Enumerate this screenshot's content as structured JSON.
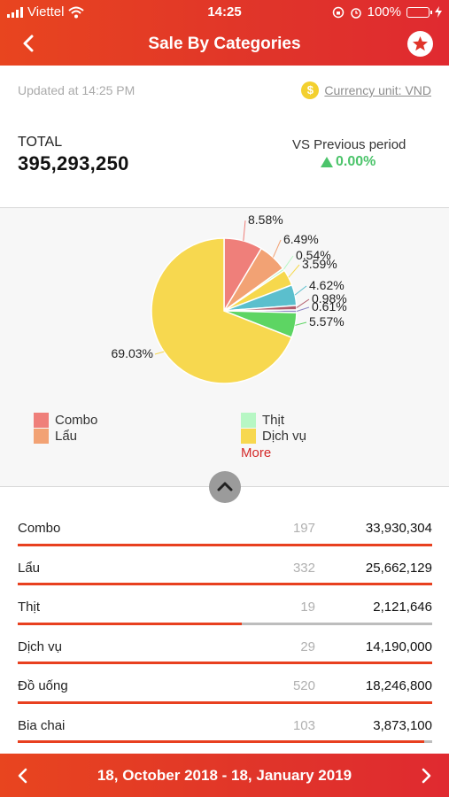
{
  "status_bar": {
    "carrier": "Viettel",
    "time": "14:25",
    "battery": "100%"
  },
  "header": {
    "title": "Sale By Categories"
  },
  "info": {
    "updated": "Updated at 14:25 PM",
    "currency_symbol": "$",
    "currency": "Currency unit: VND"
  },
  "summary": {
    "total_label": "TOTAL",
    "total_value": "395,293,250",
    "vs_label": "VS Previous period",
    "vs_value": "0.00%"
  },
  "chart_data": {
    "type": "pie",
    "slices": [
      {
        "label": "8.58%",
        "value": 8.58,
        "color": "#ef7f7a"
      },
      {
        "label": "6.49%",
        "value": 6.49,
        "color": "#f2a274"
      },
      {
        "label": "0.54%",
        "value": 0.54,
        "color": "#b7f7c4"
      },
      {
        "label": "3.59%",
        "value": 3.59,
        "color": "#f6d84c"
      },
      {
        "label": "4.62%",
        "value": 4.62,
        "color": "#5bbfcd"
      },
      {
        "label": "0.98%",
        "value": 0.98,
        "color": "#b25c6b"
      },
      {
        "label": "0.61%",
        "value": 0.61,
        "color": "#8e86c6"
      },
      {
        "label": "5.57%",
        "value": 5.57,
        "color": "#5dd563"
      },
      {
        "label": "69.03%",
        "value": 69.03,
        "color": "#f7d84f"
      }
    ],
    "legend": [
      {
        "name": "Combo",
        "color": "#ef7f7a"
      },
      {
        "name": "Lẩu",
        "color": "#f2a274"
      },
      {
        "name": "Thịt",
        "color": "#b7f7c4"
      },
      {
        "name": "Dịch vụ",
        "color": "#f7d84f"
      }
    ],
    "more_label": "More"
  },
  "rows": [
    {
      "name": "Combo",
      "qty": "197",
      "amount": "33,930,304",
      "progress": 1.0
    },
    {
      "name": "Lẩu",
      "qty": "332",
      "amount": "25,662,129",
      "progress": 1.0
    },
    {
      "name": "Thịt",
      "qty": "19",
      "amount": "2,121,646",
      "progress": 0.54
    },
    {
      "name": "Dịch vụ",
      "qty": "29",
      "amount": "14,190,000",
      "progress": 1.0
    },
    {
      "name": "Đồ uống",
      "qty": "520",
      "amount": "18,246,800",
      "progress": 1.0
    },
    {
      "name": "Bia chai",
      "qty": "103",
      "amount": "3,873,100",
      "progress": 0.98
    }
  ],
  "footer": {
    "date_range": "18, October 2018 - 18, January 2019"
  },
  "icons": {
    "back": "chevron-left-icon",
    "favorite": "star-icon",
    "collapse": "chevron-up-icon",
    "prev": "chevron-left-icon",
    "next": "chevron-right-icon"
  }
}
